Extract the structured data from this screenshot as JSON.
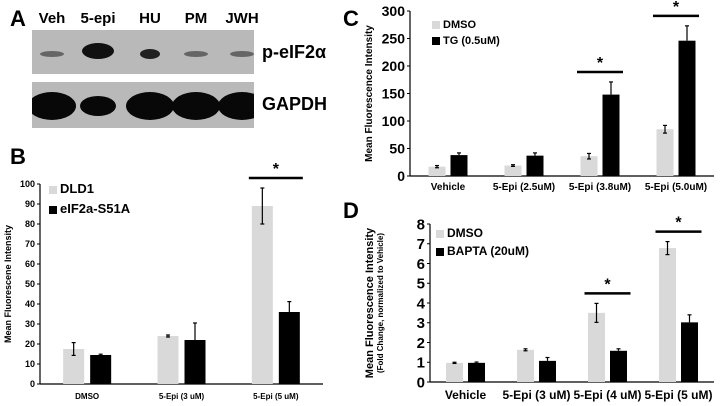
{
  "panels": {
    "A": {
      "letter": "A",
      "lanes": [
        "Veh",
        "5-epi",
        "HU",
        "PM",
        "JWH"
      ],
      "bands": [
        "p-eIF2α",
        "GAPDH"
      ],
      "band_intensity": {
        "p-eIF2α": [
          "faint",
          "strong",
          "medium",
          "faint",
          "faint"
        ],
        "GAPDH": [
          "strong",
          "medium",
          "strong",
          "strong",
          "strong"
        ]
      }
    },
    "B": {
      "letter": "B"
    },
    "C": {
      "letter": "C"
    },
    "D": {
      "letter": "D"
    }
  },
  "chart_data": [
    {
      "panel": "B",
      "type": "bar",
      "title": "",
      "xlabel": "",
      "ylabel": "Mean Fluorescene Intensity",
      "ylim": [
        0,
        100
      ],
      "yticks": [
        0,
        10,
        20,
        30,
        40,
        50,
        60,
        70,
        80,
        90,
        100
      ],
      "categories": [
        "DMSO",
        "5-Epi (3 uM)",
        "5-Epi (5 uM)"
      ],
      "series": [
        {
          "name": "DLD1",
          "color": "#d9d9d9",
          "values": [
            17.5,
            24,
            89
          ],
          "errors": [
            3.2,
            0.5,
            9
          ]
        },
        {
          "name": "eIF2a-S51A",
          "color": "#000000",
          "values": [
            14.5,
            22,
            36
          ],
          "errors": [
            0.4,
            8.5,
            5.2
          ]
        }
      ],
      "annotations": [
        {
          "text": "*",
          "category": "5-Epi (5 uM)"
        }
      ],
      "legend_position": "top-left",
      "grid": false
    },
    {
      "panel": "C",
      "type": "bar",
      "title": "",
      "xlabel": "",
      "ylabel": "Mean Fluorescence  Intensity",
      "ylim": [
        0,
        300
      ],
      "yticks": [
        0,
        50,
        100,
        150,
        200,
        250,
        300
      ],
      "categories": [
        "Vehicle",
        "5-Epi (2.5uM)",
        "5-Epi (3.8uM)",
        "5-Epi (5.0uM)"
      ],
      "series": [
        {
          "name": "DMSO",
          "color": "#d9d9d9",
          "values": [
            17,
            19,
            36,
            85
          ],
          "errors": [
            2,
            1.5,
            5,
            7
          ]
        },
        {
          "name": "TG (0.5uM)",
          "color": "#000000",
          "values": [
            38,
            37,
            148,
            246
          ],
          "errors": [
            4,
            5,
            23,
            27
          ]
        }
      ],
      "annotations": [
        {
          "text": "*",
          "category": "5-Epi (3.8uM)"
        },
        {
          "text": "*",
          "category": "5-Epi (5.0uM)"
        }
      ],
      "legend_position": "top-left",
      "grid": false
    },
    {
      "panel": "D",
      "type": "bar",
      "title": "",
      "xlabel": "",
      "ylabel": "Mean Fluorescence  Intensity",
      "ylabel2": "(Fold Change, normalized to Vehicle)",
      "ylim": [
        0,
        8
      ],
      "yticks": [
        0,
        1,
        2,
        3,
        4,
        5,
        6,
        7,
        8
      ],
      "categories": [
        "Vehicle",
        "5-Epi (3 uM)",
        "5-Epi (4 uM)",
        "5-Epi (5 uM)"
      ],
      "series": [
        {
          "name": "DMSO",
          "color": "#d9d9d9",
          "values": [
            0.97,
            1.63,
            3.5,
            6.78
          ],
          "errors": [
            0.03,
            0.05,
            0.48,
            0.33
          ]
        },
        {
          "name": "BAPTA (20uM)",
          "color": "#000000",
          "values": [
            0.97,
            1.07,
            1.58,
            3.02
          ],
          "errors": [
            0.04,
            0.17,
            0.1,
            0.38
          ]
        }
      ],
      "annotations": [
        {
          "text": "*",
          "category": "5-Epi (4 uM)"
        },
        {
          "text": "*",
          "category": "5-Epi (5 uM)"
        }
      ],
      "legend_position": "top-left",
      "grid": false
    }
  ]
}
